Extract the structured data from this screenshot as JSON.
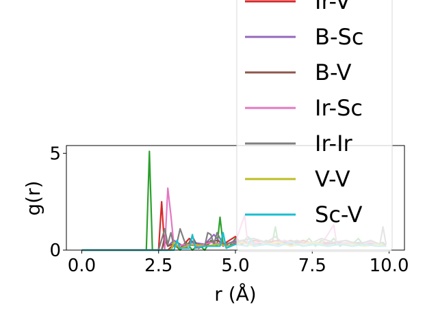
{
  "chart_data": {
    "type": "line",
    "title": "",
    "xlabel": "r (Å)",
    "ylabel": "g(r)",
    "xlim": [
      -0.5,
      10.5
    ],
    "ylim": [
      0,
      5.4
    ],
    "xticks": [
      0.0,
      2.5,
      5.0,
      7.5,
      10.0
    ],
    "xtick_labels": [
      "0.0",
      "2.5",
      "5.0",
      "7.5",
      "10.0"
    ],
    "yticks": [
      0,
      5
    ],
    "ytick_labels": [
      "0",
      "5"
    ],
    "grid": false,
    "legend_position": "upper-right (extends above the axes)",
    "series": [
      {
        "name": "",
        "color": "#2ca02c",
        "x": [
          0.0,
          2.1,
          2.2,
          2.3,
          2.9,
          3.0,
          3.2,
          3.4,
          3.6,
          3.8,
          4.0,
          4.2,
          4.4,
          4.5,
          4.6,
          4.8,
          5.0,
          5.2,
          5.4,
          5.6,
          5.8,
          6.0,
          6.2,
          6.3,
          6.4,
          6.6,
          6.8,
          7.0,
          7.2,
          7.4,
          7.6,
          7.8,
          8.0,
          8.2,
          8.4,
          8.6,
          8.8,
          9.0,
          9.2,
          9.4,
          9.6,
          9.8,
          9.9
        ],
        "y": [
          0,
          0,
          5.1,
          0,
          0,
          0.3,
          0,
          0.4,
          0,
          0.3,
          0,
          0.5,
          0.2,
          1.7,
          0.3,
          0.2,
          0.6,
          0.3,
          0.7,
          0.4,
          0.3,
          0.5,
          0.4,
          1.2,
          0.3,
          0.5,
          0.2,
          0.5,
          0.3,
          0.6,
          0.2,
          0.5,
          0.3,
          0.6,
          0.2,
          0.4,
          0.3,
          0.6,
          0.2,
          0.5,
          0.3,
          0.4,
          0.2
        ]
      },
      {
        "name": "Ir-V",
        "color": "#d62728",
        "x": [
          0.0,
          2.5,
          2.6,
          2.7,
          2.8,
          3.0,
          3.2,
          3.5,
          3.8,
          4.2,
          4.6,
          5.0,
          5.2,
          5.6,
          6.0,
          6.4,
          6.8,
          7.2,
          7.6,
          8.0,
          8.4,
          8.8,
          9.2,
          9.6,
          9.9
        ],
        "y": [
          0,
          0,
          2.5,
          0,
          0,
          0.3,
          0.1,
          0.6,
          0.1,
          0.4,
          0.3,
          0.7,
          0.3,
          0.5,
          0.4,
          0.5,
          0.3,
          0.5,
          0.3,
          0.4,
          0.3,
          0.4,
          0.3,
          0.3,
          0.3
        ]
      },
      {
        "name": "B-Sc",
        "color": "#9467bd",
        "x": [
          0.0,
          2.6,
          2.7,
          2.8,
          3.0,
          3.3,
          3.6,
          4.0,
          4.3,
          4.6,
          5.0,
          5.4,
          5.8,
          6.2,
          6.6,
          7.0,
          7.4,
          7.8,
          8.2,
          8.6,
          9.0,
          9.4,
          9.8
        ],
        "y": [
          0,
          0,
          0.7,
          0.2,
          0.5,
          0.2,
          0.4,
          0.3,
          0.8,
          0.2,
          0.5,
          0.3,
          0.4,
          0.3,
          0.5,
          0.3,
          0.4,
          0.3,
          0.4,
          0.3,
          0.4,
          0.3,
          0.3
        ]
      },
      {
        "name": "B-V",
        "color": "#8c564b",
        "x": [
          0.0,
          2.6,
          2.7,
          2.8,
          3.1,
          3.4,
          3.6,
          3.8,
          4.1,
          4.4,
          4.8,
          5.2,
          5.6,
          6.0,
          6.4,
          6.8,
          7.2,
          7.6,
          8.0,
          8.4,
          8.8,
          9.2,
          9.6,
          9.9
        ],
        "y": [
          0,
          0,
          0.6,
          0.2,
          0.4,
          0.1,
          0.7,
          0.1,
          0.4,
          0.5,
          0.2,
          0.5,
          0.3,
          0.4,
          0.3,
          0.5,
          0.3,
          0.4,
          0.3,
          0.4,
          0.3,
          0.4,
          0.3,
          0.3
        ]
      },
      {
        "name": "Ir-Sc",
        "color": "#e377c2",
        "x": [
          0.0,
          2.7,
          2.8,
          2.9,
          3.0,
          3.4,
          3.8,
          4.2,
          4.6,
          5.0,
          5.3,
          5.4,
          5.8,
          6.2,
          6.6,
          7.0,
          7.4,
          7.8,
          8.2,
          8.3,
          8.6,
          9.0,
          9.4,
          9.8
        ],
        "y": [
          0,
          0,
          3.2,
          1.8,
          0.2,
          0.3,
          0.2,
          0.4,
          0.3,
          0.4,
          1.8,
          0.3,
          0.4,
          0.3,
          0.5,
          0.3,
          0.4,
          0.3,
          1.3,
          0.3,
          0.4,
          0.3,
          0.4,
          0.3
        ]
      },
      {
        "name": "Ir-Ir",
        "color": "#7f7f7f",
        "x": [
          0.0,
          2.5,
          2.7,
          2.8,
          2.9,
          3.0,
          3.1,
          3.2,
          3.4,
          3.7,
          4.0,
          4.1,
          4.2,
          4.3,
          4.4,
          4.6,
          4.9,
          5.2,
          5.6,
          6.0,
          6.3,
          6.6,
          7.0,
          7.4,
          7.8,
          8.2,
          8.6,
          9.0,
          9.4,
          9.7,
          9.8,
          9.9
        ],
        "y": [
          0,
          0,
          1.1,
          0.3,
          0.9,
          0.2,
          0.4,
          1.1,
          0.2,
          0.3,
          0.2,
          0.9,
          0.8,
          0.3,
          0.9,
          0.3,
          0.4,
          0.5,
          0.6,
          0.4,
          0.7,
          0.3,
          0.5,
          0.3,
          0.6,
          0.4,
          0.5,
          0.3,
          0.5,
          0.3,
          1.2,
          0.3
        ]
      },
      {
        "name": "V-V",
        "color": "#bcbd22",
        "x": [
          0.0,
          2.9,
          3.0,
          3.2,
          3.6,
          4.0,
          4.4,
          4.8,
          5.2,
          5.6,
          6.0,
          6.4,
          6.8,
          7.2,
          7.6,
          8.0,
          8.4,
          8.8,
          9.2,
          9.6,
          9.9
        ],
        "y": [
          0,
          0,
          0.4,
          0.1,
          0.3,
          0.2,
          0.3,
          0.2,
          0.4,
          0.2,
          0.3,
          0.4,
          0.2,
          0.3,
          0.4,
          0.2,
          0.3,
          0.3,
          0.2,
          0.3,
          0.2
        ]
      },
      {
        "name": "Sc-V",
        "color": "#17becf",
        "x": [
          0.0,
          3.0,
          3.1,
          3.2,
          3.5,
          3.6,
          3.7,
          4.0,
          4.5,
          4.6,
          4.7,
          5.0,
          5.4,
          5.5,
          5.6,
          6.0,
          6.4,
          6.8,
          7.2,
          7.6,
          8.0,
          8.4,
          8.8,
          9.2,
          9.6,
          9.9
        ],
        "y": [
          0,
          0,
          0.5,
          0.1,
          0.1,
          0.8,
          0.1,
          0.2,
          0.2,
          0.9,
          0.1,
          0.3,
          0.2,
          0.6,
          0.2,
          0.3,
          0.2,
          0.4,
          0.2,
          0.3,
          0.2,
          0.3,
          0.2,
          0.3,
          0.2,
          0.2
        ]
      }
    ]
  }
}
